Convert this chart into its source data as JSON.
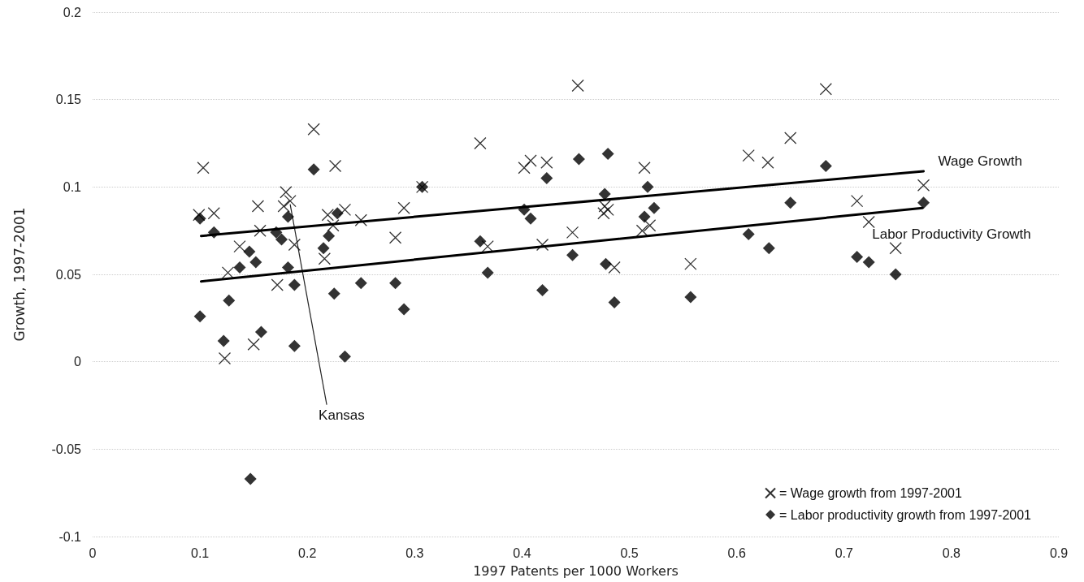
{
  "chart_data": {
    "type": "scatter",
    "xlabel": "1997 Patents per 1000 Workers",
    "ylabel": "Growth, 1997-2001",
    "xlim": [
      0,
      0.9
    ],
    "xticks": [
      0,
      0.1,
      0.2,
      0.3,
      0.4,
      0.5,
      0.6,
      0.7,
      0.8,
      0.9
    ],
    "ylim": [
      -0.1,
      0.2
    ],
    "yticks": [
      -0.1,
      -0.05,
      0,
      0.05,
      0.1,
      0.15,
      0.2
    ],
    "grid": "y",
    "legend": "bottom right",
    "annotations": [
      {
        "text": "Kansas",
        "x": 0.184,
        "y": 0.092
      }
    ],
    "series": [
      {
        "name": "= Wage growth from 1997-2001",
        "color": "#000000",
        "marker": "cross",
        "x": [
          0.206,
          0.103,
          0.226,
          0.307,
          0.18,
          0.184,
          0.099,
          0.113,
          0.154,
          0.178,
          0.235,
          0.25,
          0.219,
          0.29,
          0.282,
          0.156,
          0.188,
          0.137,
          0.224,
          0.216,
          0.126,
          0.172,
          0.15,
          0.123,
          0.452,
          0.361,
          0.402,
          0.408,
          0.423,
          0.514,
          0.477,
          0.48,
          0.476,
          0.519,
          0.512,
          0.447,
          0.368,
          0.419,
          0.486,
          0.557,
          0.611,
          0.683,
          0.65,
          0.629,
          0.774,
          0.712,
          0.723,
          0.748
        ],
        "values": [
          0.133,
          0.111,
          0.112,
          0.1,
          0.097,
          0.092,
          0.084,
          0.085,
          0.089,
          0.089,
          0.087,
          0.081,
          0.084,
          0.088,
          0.071,
          0.075,
          0.067,
          0.066,
          0.078,
          0.059,
          0.051,
          0.044,
          0.01,
          0.002,
          0.158,
          0.125,
          0.111,
          0.115,
          0.114,
          0.111,
          0.089,
          0.087,
          0.085,
          0.078,
          0.075,
          0.074,
          0.066,
          0.067,
          0.054,
          0.056,
          0.118,
          0.156,
          0.128,
          0.114,
          0.101,
          0.092,
          0.08,
          0.065
        ]
      },
      {
        "name": "= Labor productivity growth from 1997-2001",
        "color": "#000000",
        "marker": "diamond",
        "x": [
          0.206,
          0.307,
          0.1,
          0.113,
          0.182,
          0.228,
          0.171,
          0.176,
          0.22,
          0.215,
          0.146,
          0.152,
          0.137,
          0.182,
          0.188,
          0.225,
          0.25,
          0.282,
          0.29,
          0.127,
          0.1,
          0.157,
          0.122,
          0.188,
          0.235,
          0.147,
          0.453,
          0.48,
          0.423,
          0.517,
          0.477,
          0.402,
          0.408,
          0.523,
          0.514,
          0.361,
          0.447,
          0.478,
          0.368,
          0.419,
          0.486,
          0.557,
          0.611,
          0.683,
          0.65,
          0.774,
          0.63,
          0.712,
          0.723,
          0.748
        ],
        "values": [
          0.11,
          0.1,
          0.082,
          0.074,
          0.083,
          0.085,
          0.074,
          0.07,
          0.072,
          0.065,
          0.063,
          0.057,
          0.054,
          0.054,
          0.044,
          0.039,
          0.045,
          0.045,
          0.03,
          0.035,
          0.026,
          0.017,
          0.012,
          0.009,
          0.003,
          -0.067,
          0.116,
          0.119,
          0.105,
          0.1,
          0.096,
          0.087,
          0.082,
          0.088,
          0.083,
          0.069,
          0.061,
          0.056,
          0.051,
          0.041,
          0.034,
          0.037,
          0.073,
          0.112,
          0.091,
          0.091,
          0.065,
          0.06,
          0.057,
          0.05
        ]
      },
      {
        "name": "Wage Growth",
        "type": "line",
        "color": "#000000",
        "marker": "none",
        "x": [
          0.101,
          0.774
        ],
        "values": [
          0.072,
          0.109
        ]
      },
      {
        "name": "Labor Productivity Growth",
        "type": "line",
        "color": "#000000",
        "marker": "none",
        "x": [
          0.101,
          0.773
        ],
        "values": [
          0.046,
          0.088
        ]
      }
    ]
  }
}
